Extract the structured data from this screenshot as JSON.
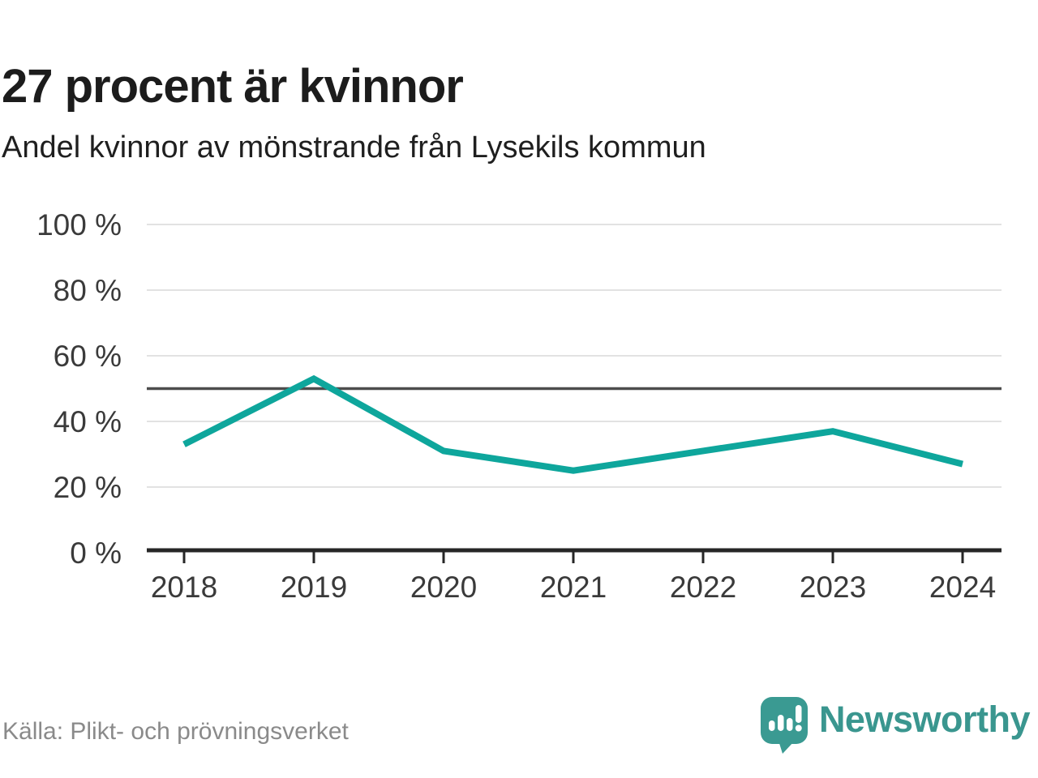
{
  "header": {
    "title": "27 procent är kvinnor",
    "subtitle": "Andel kvinnor av mönstrande från Lysekils kommun"
  },
  "chart_data": {
    "type": "line",
    "title": "27 procent är kvinnor",
    "subtitle": "Andel kvinnor av mönstrande från Lysekils kommun",
    "x": [
      "2018",
      "2019",
      "2020",
      "2021",
      "2022",
      "2023",
      "2024"
    ],
    "series": [
      {
        "name": "Andel kvinnor av mönstrande",
        "values": [
          33,
          53,
          31,
          25,
          31,
          37,
          27
        ],
        "color": "#0ea69c"
      }
    ],
    "unit": "%",
    "ylim": [
      0,
      100
    ],
    "yticks": [
      0,
      20,
      40,
      60,
      80,
      100
    ],
    "ytick_suffix": " %",
    "reference_line": {
      "value": 50,
      "color": "#4d4d4d"
    },
    "grid": true,
    "legend": false
  },
  "footer": {
    "source": "Källa: Plikt- och prövningsverket",
    "brand": "Newsworthy"
  },
  "colors": {
    "accent_teal": "#0ea69c",
    "brand_teal": "#3a968f",
    "grid": "#e2e2e2",
    "axis": "#262626",
    "reference": "#4d4d4d",
    "tick_label": "#3a3a3a",
    "source_text": "#8a8a8a"
  }
}
